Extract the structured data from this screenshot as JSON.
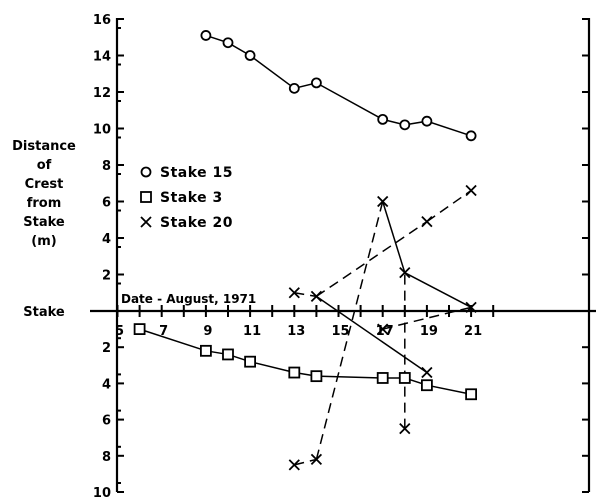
{
  "chart_data": {
    "type": "line",
    "title": "",
    "ylabel_lines": [
      "Distance",
      "of",
      "Crest",
      "from",
      "Stake",
      "(m)"
    ],
    "baseline_label": "Stake",
    "annotation": "Date - August, 1971",
    "xlim": [
      5,
      22
    ],
    "x_ticks": [
      5,
      7,
      9,
      11,
      13,
      15,
      17,
      19,
      21
    ],
    "upper_ylim": [
      0,
      16
    ],
    "upper_ticks": [
      2,
      4,
      6,
      8,
      10,
      12,
      14,
      16
    ],
    "lower_ylim": [
      0,
      10
    ],
    "lower_ticks": [
      2,
      4,
      6,
      8,
      10
    ],
    "legend": [
      {
        "marker": "circle",
        "label": "Stake 15"
      },
      {
        "marker": "square",
        "label": "Stake 3"
      },
      {
        "marker": "x",
        "label": "Stake 20"
      }
    ],
    "series": [
      {
        "name": "Stake 15",
        "marker": "circle",
        "side": "upper",
        "style": "solid",
        "x": [
          9,
          10,
          11,
          13,
          14,
          17,
          18,
          19,
          21
        ],
        "y": [
          15.1,
          14.7,
          14.0,
          12.2,
          12.5,
          10.5,
          10.2,
          10.4,
          9.6
        ]
      },
      {
        "name": "Stake 3",
        "marker": "square",
        "side": "lower",
        "style": "solid",
        "x": [
          6,
          9,
          10,
          11,
          13,
          14,
          17,
          18,
          19,
          21
        ],
        "y": [
          1.0,
          2.2,
          2.4,
          2.8,
          3.4,
          3.6,
          3.7,
          3.7,
          4.1,
          4.6
        ]
      }
    ],
    "stake20_points": [
      {
        "x": 13,
        "y": 1.0,
        "side": "upper"
      },
      {
        "x": 14,
        "y": 0.8,
        "side": "upper"
      },
      {
        "x": 17,
        "y": 6.0,
        "side": "upper"
      },
      {
        "x": 18,
        "y": 2.1,
        "side": "upper"
      },
      {
        "x": 19,
        "y": 4.9,
        "side": "upper"
      },
      {
        "x": 21,
        "y": 6.6,
        "side": "upper"
      },
      {
        "x": 13,
        "y": 8.5,
        "side": "lower"
      },
      {
        "x": 14,
        "y": 8.2,
        "side": "lower"
      },
      {
        "x": 17,
        "y": 1.0,
        "side": "lower"
      },
      {
        "x": 18,
        "y": 6.5,
        "side": "lower"
      },
      {
        "x": 19,
        "y": 3.4,
        "side": "lower"
      },
      {
        "x": 21,
        "y": 0.2,
        "side": "upper"
      }
    ],
    "stake20_segments": [
      {
        "from": 0,
        "to": 1,
        "style": "dashed"
      },
      {
        "from": 1,
        "to": 4,
        "style": "dashed"
      },
      {
        "from": 4,
        "to": 5,
        "style": "dashed"
      },
      {
        "from": 6,
        "to": 7,
        "style": "dashed"
      },
      {
        "from": 7,
        "to": 2,
        "style": "dashed"
      },
      {
        "from": 8,
        "to": 11,
        "style": "dashed"
      },
      {
        "from": 9,
        "to": 3,
        "style": "dashed"
      },
      {
        "from": 1,
        "to": 10,
        "style": "solid"
      },
      {
        "from": 2,
        "to": 3,
        "style": "solid"
      },
      {
        "from": 3,
        "to": 11,
        "style": "solid"
      }
    ]
  }
}
